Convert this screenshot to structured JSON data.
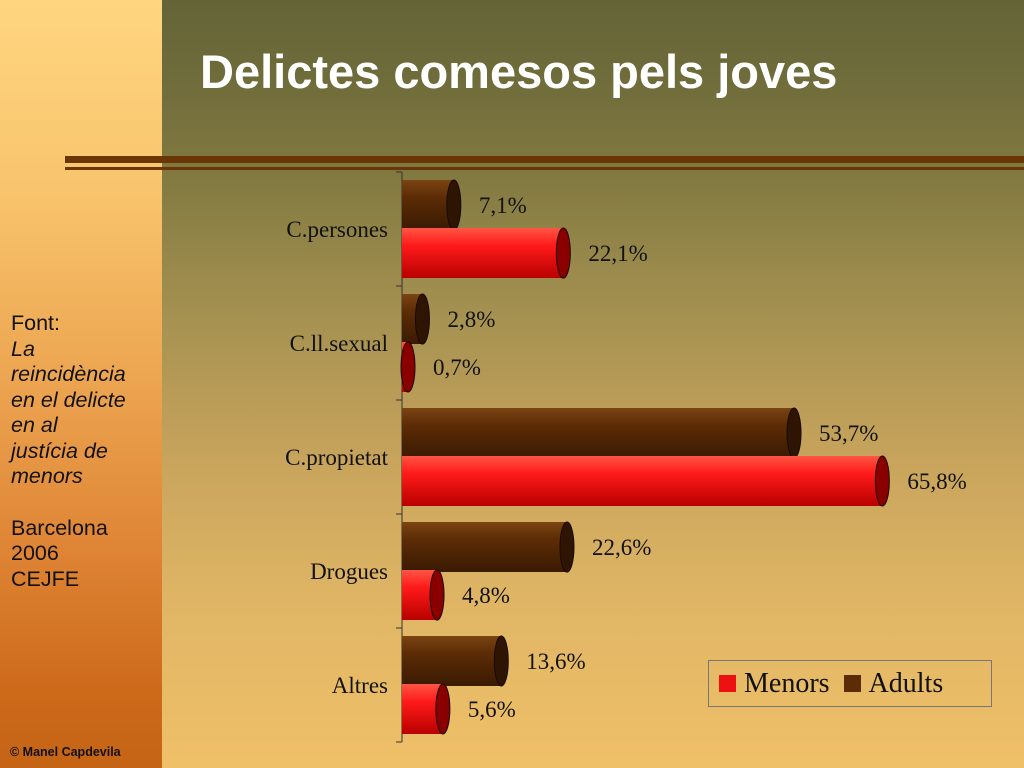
{
  "title": "Delictes comesos pels joves",
  "source": {
    "label": "Font:",
    "work": [
      "La",
      "reincidència",
      "en el delicte",
      "en al",
      "justícia de",
      "menors"
    ],
    "place": "Barcelona",
    "year": "2006",
    "org": "CEJFE"
  },
  "copyright": "© Manel Capdevila",
  "colors": {
    "menors": "#ee1111",
    "adults": "#5c2c06"
  },
  "chart_data": {
    "type": "bar",
    "orientation": "horizontal",
    "categories": [
      "C.persones",
      "C.ll.sexual",
      "C.propietat",
      "Drogues",
      "Altres"
    ],
    "series": [
      {
        "name": "Adults",
        "values": [
          7.1,
          2.8,
          53.7,
          22.6,
          13.6
        ],
        "labels": [
          "7,1%",
          "2,8%",
          "53,7%",
          "22,6%",
          "13,6%"
        ]
      },
      {
        "name": "Menors",
        "values": [
          22.1,
          0.7,
          65.8,
          4.8,
          5.6
        ],
        "labels": [
          "22,1%",
          "0,7%",
          "65,8%",
          "4,8%",
          "5,6%"
        ]
      }
    ],
    "xlim": [
      0,
      70
    ],
    "legend": {
      "position": "bottom-right",
      "entries": [
        "Menors",
        "Adults"
      ]
    }
  }
}
